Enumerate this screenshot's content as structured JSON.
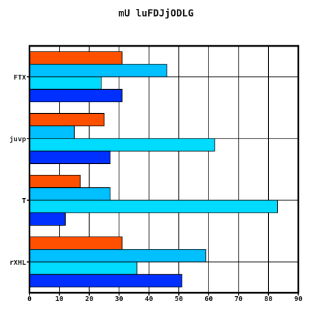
{
  "chart_data": {
    "type": "bar",
    "orientation": "horizontal",
    "title": "mU luFDJjODLG",
    "xlabel": "",
    "ylabel": "",
    "categories": [
      "FTX",
      "juvp",
      "T",
      "rXHL"
    ],
    "xlim": [
      0,
      90
    ],
    "x_ticks": [
      0,
      10,
      20,
      30,
      40,
      50,
      60,
      70,
      80,
      90
    ],
    "grid": true,
    "legend": "none",
    "series": [
      {
        "color": "#ff5000",
        "values": [
          31,
          25,
          17,
          31
        ]
      },
      {
        "color": "#00c0ff",
        "values": [
          46,
          15,
          27,
          59
        ]
      },
      {
        "color": "#00dcff",
        "values": [
          24,
          62,
          83,
          36
        ]
      },
      {
        "color": "#0030ff",
        "values": [
          31,
          27,
          12,
          51
        ]
      }
    ]
  }
}
